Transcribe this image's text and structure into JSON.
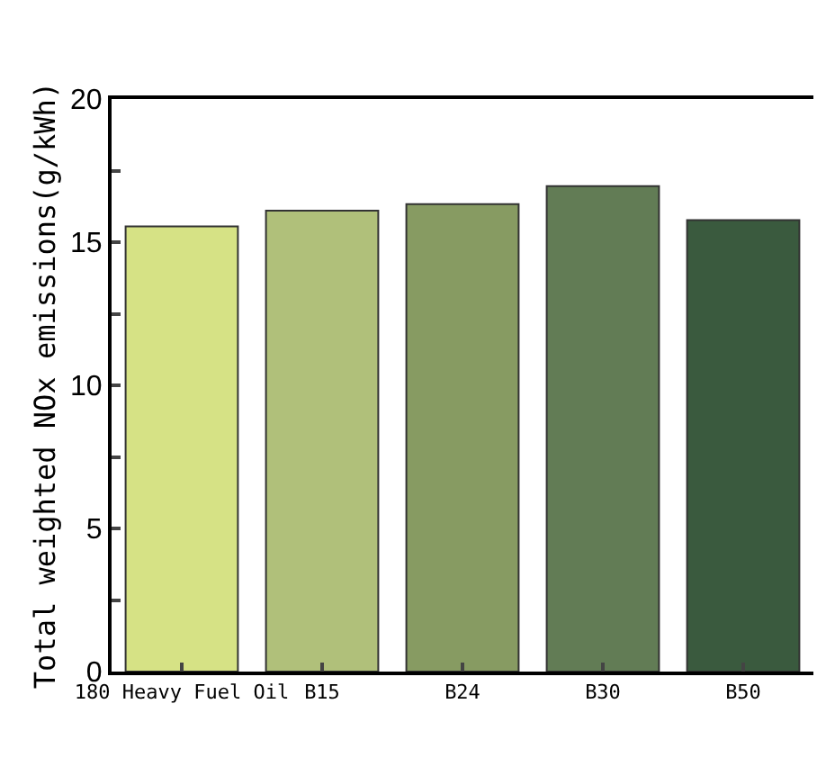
{
  "chart_data": {
    "type": "bar",
    "ylabel": "Total weighted NOx emissions(g/kWh)",
    "categories": [
      "180 Heavy Fuel Oil",
      "B15",
      "B24",
      "B30",
      "B50"
    ],
    "values": [
      15.55,
      16.1,
      16.33,
      16.96,
      15.77
    ],
    "colors": [
      "#d6e285",
      "#b0c07a",
      "#879b62",
      "#627c55",
      "#3a5a3e"
    ],
    "ylim": [
      0,
      20
    ],
    "yticks": [
      0,
      {
        "value": 2.5,
        "label": null
      },
      5,
      {
        "value": 7.5,
        "label": null
      },
      10,
      {
        "value": 12.5,
        "label": null
      },
      15,
      {
        "value": 17.5,
        "label": null
      },
      20
    ]
  }
}
